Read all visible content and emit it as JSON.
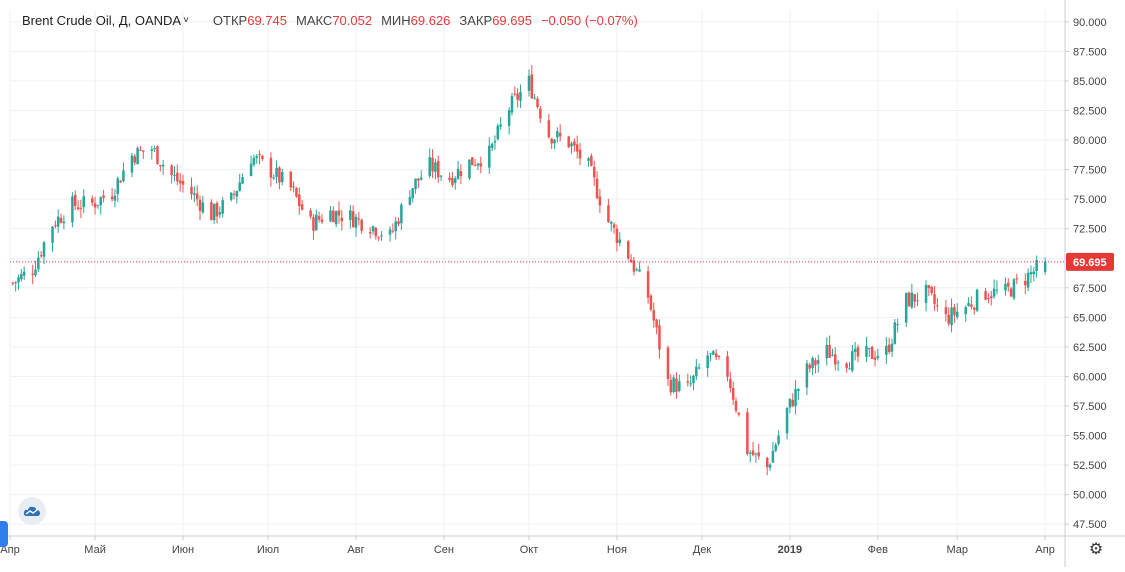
{
  "legend": {
    "symbol": "Brent Crude Oil, Д, OANDA",
    "open_label": "ОТКР",
    "open": "69.745",
    "high_label": "МАКС",
    "high": "70.052",
    "low_label": "МИН",
    "low": "69.626",
    "close_label": "ЗАКР",
    "close": "69.695",
    "change": "−0.050 (−0.07%)"
  },
  "colors": {
    "up": "#26a69a",
    "down": "#ef5350",
    "grid": "#eef0f3",
    "axis": "#c8ccd2",
    "last": "#e53935"
  },
  "chart_data": {
    "type": "candlestick",
    "ylim": [
      46.5,
      91.0
    ],
    "y_ticks": [
      "47.500",
      "50.000",
      "52.500",
      "55.000",
      "57.500",
      "60.000",
      "62.500",
      "65.000",
      "67.500",
      "70.000",
      "72.500",
      "75.000",
      "77.500",
      "80.000",
      "82.500",
      "85.000",
      "87.500",
      "90.000"
    ],
    "x_range": [
      "2018-04-01",
      "2019-04-08"
    ],
    "x_ticks": [
      {
        "label": "Апр",
        "date": "2018-04-01"
      },
      {
        "label": "Май",
        "date": "2018-05-01"
      },
      {
        "label": "Июн",
        "date": "2018-06-01"
      },
      {
        "label": "Июл",
        "date": "2018-07-01"
      },
      {
        "label": "Авг",
        "date": "2018-08-01"
      },
      {
        "label": "Сен",
        "date": "2018-09-01"
      },
      {
        "label": "Окт",
        "date": "2018-10-01"
      },
      {
        "label": "Ноя",
        "date": "2018-11-01"
      },
      {
        "label": "Дек",
        "date": "2018-12-01"
      },
      {
        "label": "2019",
        "date": "2019-01-01"
      },
      {
        "label": "Фев",
        "date": "2019-02-01"
      },
      {
        "label": "Мар",
        "date": "2019-03-01"
      },
      {
        "label": "Апр",
        "date": "2019-04-01"
      }
    ],
    "last_price": "69.695",
    "closes": [
      [
        "2018-04-02",
        67.9
      ],
      [
        "2018-04-09",
        69.1
      ],
      [
        "2018-04-16",
        72.9
      ],
      [
        "2018-04-23",
        74.5
      ],
      [
        "2018-04-30",
        74.6
      ],
      [
        "2018-05-07",
        75.6
      ],
      [
        "2018-05-14",
        78.7
      ],
      [
        "2018-05-21",
        79.3
      ],
      [
        "2018-05-28",
        77.0
      ],
      [
        "2018-06-04",
        75.5
      ],
      [
        "2018-06-11",
        73.7
      ],
      [
        "2018-06-18",
        74.9
      ],
      [
        "2018-06-25",
        78.6
      ],
      [
        "2018-07-02",
        77.4
      ],
      [
        "2018-07-09",
        75.9
      ],
      [
        "2018-07-16",
        72.9
      ],
      [
        "2018-07-23",
        73.9
      ],
      [
        "2018-07-30",
        73.5
      ],
      [
        "2018-08-06",
        72.8
      ],
      [
        "2018-08-13",
        71.8
      ],
      [
        "2018-08-20",
        75.8
      ],
      [
        "2018-08-27",
        77.8
      ],
      [
        "2018-09-03",
        76.8
      ],
      [
        "2018-09-10",
        78.1
      ],
      [
        "2018-09-17",
        78.8
      ],
      [
        "2018-09-24",
        82.7
      ],
      [
        "2018-10-01",
        84.9
      ],
      [
        "2018-10-08",
        80.5
      ],
      [
        "2018-10-15",
        79.8
      ],
      [
        "2018-10-22",
        77.7
      ],
      [
        "2018-10-29",
        73.1
      ],
      [
        "2018-11-05",
        70.3
      ],
      [
        "2018-11-12",
        66.8
      ],
      [
        "2018-11-19",
        59.5
      ],
      [
        "2018-11-26",
        58.9
      ],
      [
        "2018-12-03",
        61.8
      ],
      [
        "2018-12-10",
        60.3
      ],
      [
        "2018-12-17",
        53.8
      ],
      [
        "2018-12-24",
        52.3
      ],
      [
        "2018-12-31",
        57.1
      ],
      [
        "2019-01-07",
        60.5
      ],
      [
        "2019-01-14",
        62.1
      ],
      [
        "2019-01-21",
        61.4
      ],
      [
        "2019-01-28",
        61.8
      ],
      [
        "2019-02-04",
        62.1
      ],
      [
        "2019-02-11",
        66.4
      ],
      [
        "2019-02-18",
        67.0
      ],
      [
        "2019-02-25",
        64.9
      ],
      [
        "2019-03-04",
        65.9
      ],
      [
        "2019-03-11",
        67.1
      ],
      [
        "2019-03-18",
        67.1
      ],
      [
        "2019-03-25",
        68.3
      ],
      [
        "2019-04-01",
        69.7
      ]
    ]
  }
}
